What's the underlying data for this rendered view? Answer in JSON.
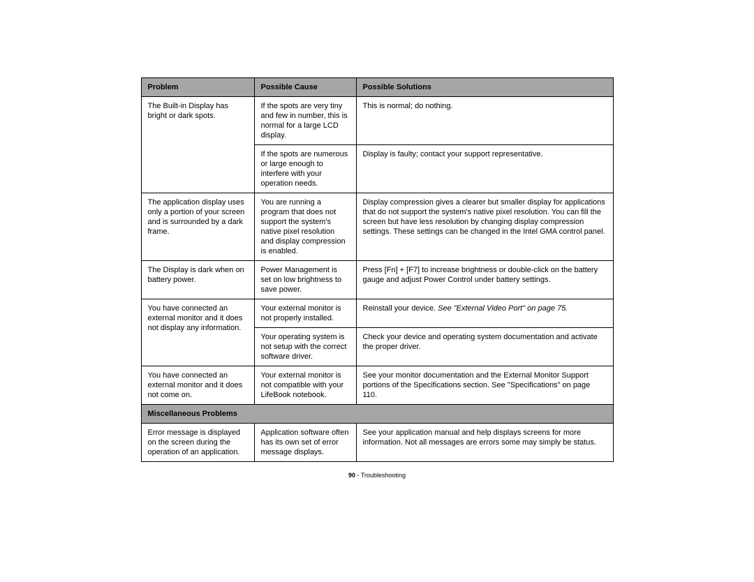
{
  "table": {
    "headers": {
      "problem": "Problem",
      "cause": "Possible Cause",
      "solutions": "Possible Solutions"
    },
    "section_misc": "Miscellaneous Problems",
    "rows": {
      "r1": {
        "problem": "The Built-in Display has bright or dark spots.",
        "cause": "If the spots are very tiny and few in number, this is normal for a large LCD display.",
        "solution": "This is normal; do nothing."
      },
      "r2": {
        "cause": "If the spots are numerous or large enough to interfere with your operation needs.",
        "solution": "Display is faulty; contact your support representative."
      },
      "r3": {
        "problem": "The application display uses only a portion of your screen and is surrounded by a dark frame.",
        "cause": "You are running a program that does not support the system's native pixel resolution and display compression is enabled.",
        "solution": "Display compression gives a clearer but smaller display for applications that do not support the system's native pixel resolution. You can fill the screen but have less resolution by changing display compression settings. These settings can be changed in the Intel GMA control panel."
      },
      "r4": {
        "problem": "The Display is dark when on battery power.",
        "cause": "Power Management is set on low brightness to save power.",
        "solution": "Press [Fn] + [F7] to increase brightness or double-click on the battery gauge and adjust Power Control under battery settings."
      },
      "r5": {
        "problem": "You have connected an external monitor and it does not display any information.",
        "cause": "Your external monitor is not properly installed.",
        "solution_plain": "Reinstall your device. ",
        "solution_italic": "See \"External Video Port\" on page 75."
      },
      "r6": {
        "cause": "Your operating system is not setup with the correct software driver.",
        "solution": "Check your device and operating system documentation and activate the proper driver."
      },
      "r7": {
        "problem": "You have connected an external monitor and it does not come on.",
        "cause": "Your external monitor is not compatible with your LifeBook notebook.",
        "solution": "See your monitor documentation and the External Monitor Support portions of the Specifications section. See \"Specifications\" on page 110."
      },
      "r8": {
        "problem": "Error message is displayed on the screen during the operation of an application.",
        "cause": "Application software often has its own set of error message displays.",
        "solution": "See your application manual and help displays screens for more information. Not all messages are errors some may simply be status."
      }
    }
  },
  "footer": {
    "page_number": "90",
    "separator": " - ",
    "section": "Troubleshooting"
  }
}
